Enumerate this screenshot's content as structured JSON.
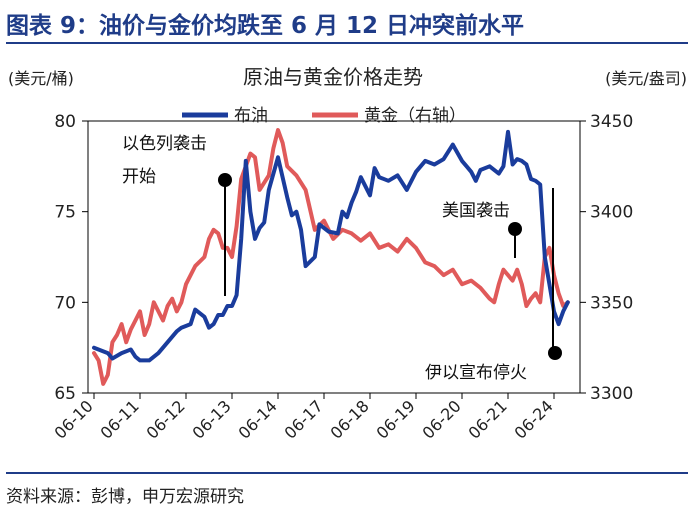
{
  "figure": {
    "title": "图表 9：油价与金价均跌至 6 月 12 日冲突前水平",
    "source": "资料来源：彭博，申万宏源研究"
  },
  "chart_data": {
    "type": "line",
    "title": "原油与黄金价格走势",
    "ylabel_left": "(美元/桶)",
    "ylabel_right": "(美元/盎司)",
    "ylim_left": [
      65,
      80
    ],
    "ylim_right": [
      3300,
      3450
    ],
    "yticks_left": [
      65,
      70,
      75,
      80
    ],
    "yticks_right": [
      3300,
      3350,
      3400,
      3450
    ],
    "x_index_range": [
      0,
      100
    ],
    "xticks": [
      {
        "x": 0,
        "label": "06-10"
      },
      {
        "x": 10,
        "label": "06-11"
      },
      {
        "x": 20,
        "label": "06-12"
      },
      {
        "x": 30,
        "label": "06-13"
      },
      {
        "x": 40,
        "label": "06-14"
      },
      {
        "x": 50,
        "label": "06-17"
      },
      {
        "x": 60,
        "label": "06-18"
      },
      {
        "x": 70,
        "label": "06-19"
      },
      {
        "x": 80,
        "label": "06-20"
      },
      {
        "x": 90,
        "label": "06-21"
      },
      {
        "x": 100,
        "label": "06-24"
      }
    ],
    "legend_position": "top-center",
    "grid": false,
    "series": [
      {
        "name": "布油",
        "axis": "left",
        "color": "#1a3c9c",
        "x": [
          0,
          3,
          4,
          6,
          8,
          9,
          10,
          12,
          14,
          16,
          18,
          19,
          21,
          22,
          24,
          25,
          26,
          27,
          28,
          29,
          30,
          31,
          32,
          33,
          34,
          35,
          36,
          37,
          38,
          40,
          42,
          43,
          44,
          45,
          46,
          48,
          49,
          51,
          53,
          54,
          55,
          56,
          57,
          58,
          60,
          61,
          62,
          64,
          66,
          68,
          70,
          72,
          74,
          76,
          78,
          80,
          81,
          82,
          83,
          84,
          86,
          88,
          89,
          90,
          91,
          92,
          93,
          94,
          95,
          96,
          97,
          98,
          99,
          100,
          101,
          102,
          103
        ],
        "y": [
          67.5,
          67.2,
          66.9,
          67.2,
          67.4,
          67.0,
          66.8,
          66.8,
          67.2,
          67.8,
          68.4,
          68.6,
          68.8,
          69.6,
          69.2,
          68.6,
          68.8,
          69.3,
          69.3,
          69.8,
          69.8,
          70.4,
          73.5,
          77.8,
          75.0,
          73.5,
          74.1,
          74.4,
          76.2,
          78.0,
          75.8,
          74.8,
          75.0,
          74.0,
          72.0,
          72.5,
          74.3,
          73.9,
          73.8,
          75.0,
          74.7,
          75.5,
          76.1,
          76.9,
          75.9,
          77.4,
          76.9,
          76.7,
          77.0,
          76.2,
          77.2,
          77.8,
          77.6,
          77.9,
          78.7,
          77.8,
          77.5,
          77.2,
          76.7,
          77.3,
          77.5,
          77.1,
          77.5,
          79.4,
          77.6,
          77.9,
          77.8,
          77.6,
          76.8,
          76.7,
          76.5,
          72.5,
          71.0,
          69.5,
          68.8,
          69.5,
          70.0
        ]
      },
      {
        "name": "黄金（右轴）",
        "axis": "right",
        "color": "#e05a5a",
        "x": [
          0,
          1,
          2,
          3,
          4,
          5,
          6,
          7,
          8,
          9,
          10,
          11,
          12,
          13,
          14,
          15,
          16,
          17,
          18,
          19,
          20,
          22,
          24,
          25,
          26,
          27,
          28,
          29,
          30,
          31,
          32,
          33,
          34,
          35,
          36,
          38,
          39,
          40,
          41,
          42,
          44,
          46,
          48,
          50,
          52,
          54,
          56,
          58,
          60,
          62,
          64,
          66,
          68,
          70,
          72,
          74,
          76,
          78,
          80,
          82,
          84,
          86,
          87,
          88,
          89,
          90,
          91,
          92,
          93,
          94,
          95,
          96,
          97,
          98,
          99,
          100,
          101,
          102,
          103
        ],
        "y": [
          3322,
          3318,
          3305,
          3310,
          3328,
          3332,
          3338,
          3328,
          3335,
          3340,
          3345,
          3332,
          3338,
          3350,
          3345,
          3340,
          3348,
          3352,
          3345,
          3350,
          3360,
          3370,
          3375,
          3385,
          3390,
          3388,
          3380,
          3380,
          3375,
          3392,
          3418,
          3425,
          3432,
          3430,
          3412,
          3420,
          3435,
          3445,
          3438,
          3425,
          3420,
          3412,
          3390,
          3395,
          3385,
          3390,
          3388,
          3384,
          3388,
          3380,
          3382,
          3378,
          3385,
          3380,
          3372,
          3370,
          3365,
          3368,
          3360,
          3362,
          3358,
          3352,
          3350,
          3360,
          3368,
          3365,
          3362,
          3368,
          3360,
          3348,
          3352,
          3355,
          3350,
          3375,
          3380,
          3365,
          3355,
          3348,
          3350
        ]
      }
    ],
    "annotations": [
      {
        "text": "以色列袭击开始",
        "x": 29
      },
      {
        "text": "美国袭击",
        "x": 90
      },
      {
        "text": "伊以宣布停火",
        "x": 98
      }
    ]
  }
}
